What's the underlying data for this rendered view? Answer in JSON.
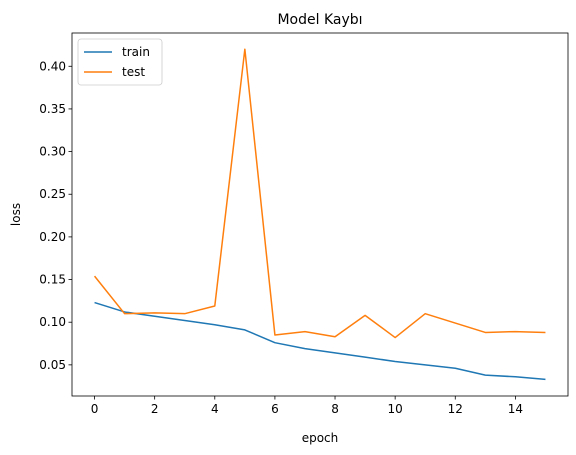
{
  "chart_data": {
    "type": "line",
    "title": "Model Kaybı",
    "xlabel": "epoch",
    "ylabel": "loss",
    "x": [
      0,
      1,
      2,
      3,
      4,
      5,
      6,
      7,
      8,
      9,
      10,
      11,
      12,
      13,
      14,
      15
    ],
    "xlim": [
      -0.75,
      15.75
    ],
    "ylim": [
      0.0135,
      0.439
    ],
    "xticks": [
      0,
      2,
      4,
      6,
      8,
      10,
      12,
      14
    ],
    "yticks": [
      0.05,
      0.1,
      0.15,
      0.2,
      0.25,
      0.3,
      0.35,
      0.4
    ],
    "ytick_labels": [
      "0.05",
      "0.10",
      "0.15",
      "0.20",
      "0.25",
      "0.30",
      "0.35",
      "0.40"
    ],
    "grid": false,
    "legend_position": "top-left",
    "series": [
      {
        "name": "train",
        "color": "#1f77b4",
        "values": [
          0.123,
          0.112,
          0.107,
          0.102,
          0.097,
          0.091,
          0.076,
          0.069,
          0.064,
          0.059,
          0.054,
          0.05,
          0.046,
          0.038,
          0.036,
          0.033
        ]
      },
      {
        "name": "test",
        "color": "#ff7f0e",
        "values": [
          0.154,
          0.11,
          0.111,
          0.11,
          0.119,
          0.42,
          0.085,
          0.089,
          0.083,
          0.108,
          0.082,
          0.11,
          0.099,
          0.088,
          0.089,
          0.088
        ]
      }
    ]
  }
}
